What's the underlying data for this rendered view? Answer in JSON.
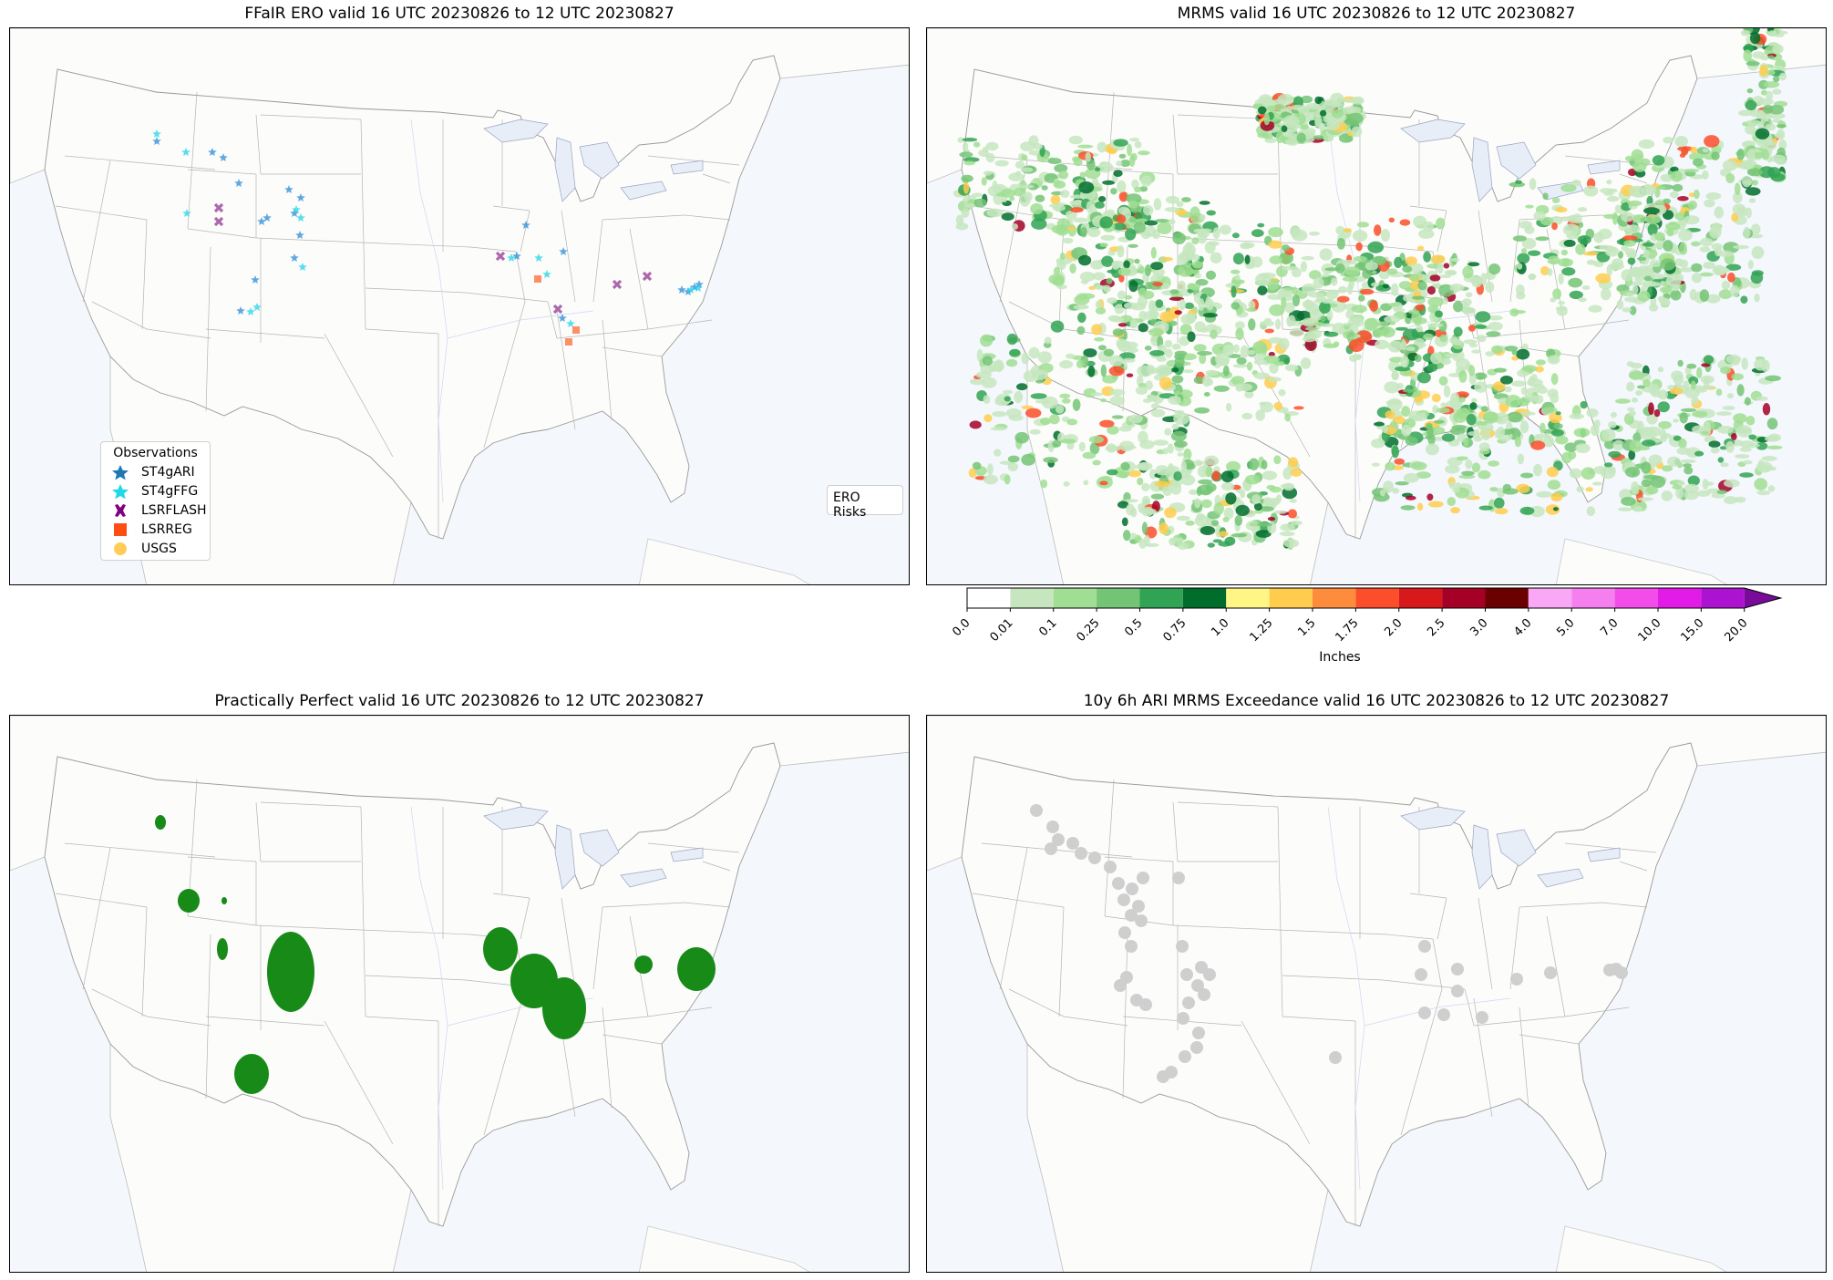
{
  "panels": [
    {
      "id": "ero",
      "title": "FFaIR ERO valid 16 UTC 20230826 to 12 UTC 20230827"
    },
    {
      "id": "mrms",
      "title": "MRMS valid 16 UTC 20230826 to 12 UTC 20230827"
    },
    {
      "id": "pp",
      "title": "Practically Perfect valid 16 UTC 20230826 to 12 UTC 20230827"
    },
    {
      "id": "ari",
      "title": "10y 6h ARI MRMS Exceedance valid 16 UTC 20230826 to 12 UTC 20230827"
    }
  ],
  "legend": {
    "title": "Observations",
    "items": [
      {
        "label": "ST4gARI",
        "icon": "star-icon",
        "color": "#1f77b4"
      },
      {
        "label": "ST4gFFG",
        "icon": "star-icon",
        "color": "#1fd9e6"
      },
      {
        "label": "LSRFLASH",
        "icon": "x-icon",
        "color": "#800080"
      },
      {
        "label": "LSRREG",
        "icon": "square-icon",
        "color": "#ff4d14"
      },
      {
        "label": "USGS",
        "icon": "circle-icon",
        "color": "#ffcc55"
      }
    ]
  },
  "ero_legend": {
    "title": "ERO Risks"
  },
  "colorbar": {
    "label": "Inches",
    "ticks": [
      "0.0",
      "0.01",
      "0.1",
      "0.25",
      "0.5",
      "0.75",
      "1.0",
      "1.25",
      "1.5",
      "1.75",
      "2.0",
      "2.5",
      "3.0",
      "4.0",
      "5.0",
      "7.0",
      "10.0",
      "15.0",
      "20.0"
    ],
    "colors": [
      "#ffffff",
      "#c6e6c0",
      "#a0de93",
      "#74c476",
      "#31a354",
      "#006d2c",
      "#fff685",
      "#ffcc4d",
      "#fd8d3c",
      "#fc4e2a",
      "#d7191c",
      "#a50026",
      "#6b0000",
      "#f9a8f5",
      "#f67ff0",
      "#f24ce9",
      "#e21be6",
      "#ab13d0",
      "#7a0b9a"
    ]
  },
  "markers": {
    "st4gari": [
      [
        171,
        154
      ],
      [
        232,
        166
      ],
      [
        244,
        172
      ],
      [
        261,
        200
      ],
      [
        316,
        207
      ],
      [
        329,
        216
      ],
      [
        322,
        233
      ],
      [
        292,
        238
      ],
      [
        286,
        242
      ],
      [
        328,
        257
      ],
      [
        322,
        282
      ],
      [
        279,
        306
      ],
      [
        263,
        340
      ],
      [
        566,
        280
      ],
      [
        576,
        246
      ],
      [
        617,
        275
      ],
      [
        616,
        348
      ],
      [
        747,
        317
      ],
      [
        754,
        319
      ],
      [
        761,
        314
      ],
      [
        766,
        311
      ]
    ],
    "st4gffg": [
      [
        171,
        146
      ],
      [
        203,
        166
      ],
      [
        204,
        233
      ],
      [
        324,
        229
      ],
      [
        329,
        238
      ],
      [
        331,
        292
      ],
      [
        274,
        341
      ],
      [
        281,
        336
      ],
      [
        560,
        282
      ],
      [
        590,
        282
      ],
      [
        599,
        300
      ],
      [
        625,
        354
      ],
      [
        757,
        317
      ],
      [
        765,
        315
      ]
    ],
    "lsrflash": [
      [
        239,
        227
      ],
      [
        239,
        242
      ],
      [
        548,
        280
      ],
      [
        611,
        338
      ],
      [
        676,
        311
      ],
      [
        709,
        302
      ]
    ],
    "lsrreg": [
      [
        589,
        305
      ],
      [
        631,
        361
      ],
      [
        623,
        374
      ]
    ],
    "pp_blobs": [
      [
        175,
        901,
        6,
        8
      ],
      [
        206,
        987,
        12,
        13
      ],
      [
        245,
        987,
        3,
        4
      ],
      [
        243,
        1040,
        6,
        12
      ],
      [
        318,
        1065,
        26,
        44
      ],
      [
        275,
        1177,
        19,
        22
      ],
      [
        548,
        1040,
        19,
        24
      ],
      [
        585,
        1075,
        26,
        30
      ],
      [
        618,
        1105,
        24,
        34
      ],
      [
        705,
        1057,
        10,
        10
      ],
      [
        763,
        1062,
        21,
        24
      ]
    ],
    "ari_dots": [
      [
        1136,
        888
      ],
      [
        1154,
        906
      ],
      [
        1160,
        920
      ],
      [
        1176,
        924
      ],
      [
        1152,
        930
      ],
      [
        1185,
        935
      ],
      [
        1200,
        940
      ],
      [
        1217,
        950
      ],
      [
        1226,
        968
      ],
      [
        1241,
        974
      ],
      [
        1253,
        962
      ],
      [
        1292,
        962
      ],
      [
        1232,
        986
      ],
      [
        1248,
        993
      ],
      [
        1240,
        1003
      ],
      [
        1251,
        1009
      ],
      [
        1233,
        1022
      ],
      [
        1240,
        1037
      ],
      [
        1296,
        1037
      ],
      [
        1301,
        1068
      ],
      [
        1317,
        1060
      ],
      [
        1313,
        1080
      ],
      [
        1303,
        1099
      ],
      [
        1297,
        1116
      ],
      [
        1326,
        1068
      ],
      [
        1320,
        1090
      ],
      [
        1314,
        1132
      ],
      [
        1312,
        1148
      ],
      [
        1299,
        1158
      ],
      [
        1284,
        1175
      ],
      [
        1275,
        1180
      ],
      [
        1562,
        1037
      ],
      [
        1558,
        1068
      ],
      [
        1598,
        1062
      ],
      [
        1598,
        1086
      ],
      [
        1625,
        1115
      ],
      [
        1583,
        1112
      ],
      [
        1562,
        1110
      ],
      [
        1663,
        1073
      ],
      [
        1700,
        1066
      ],
      [
        1765,
        1063
      ],
      [
        1778,
        1066
      ],
      [
        1772,
        1062
      ],
      [
        1228,
        1080
      ],
      [
        1235,
        1071
      ],
      [
        1464,
        1159
      ],
      [
        1246,
        1096
      ],
      [
        1256,
        1101
      ]
    ]
  }
}
